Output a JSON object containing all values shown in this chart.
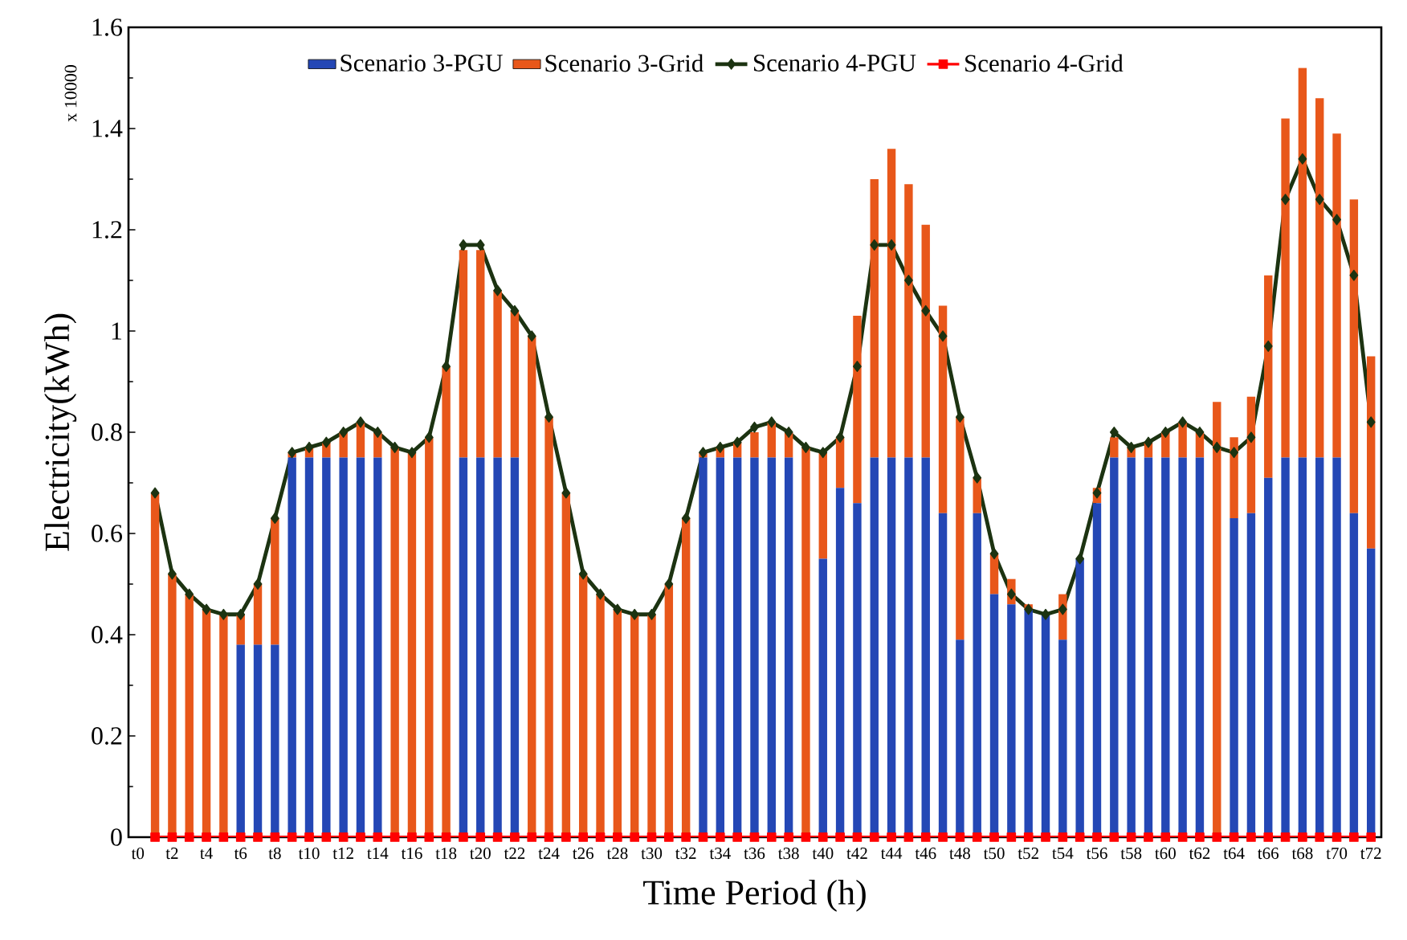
{
  "chart_data": {
    "type": "bar",
    "stacked": true,
    "legend": "top",
    "xlabel": "Time Period (h)",
    "ylabel": "Electricity(kWh)",
    "annotations": [
      "x 10000"
    ],
    "ylim": [
      0,
      1.6
    ],
    "yticks": [
      0,
      0.2,
      0.4,
      0.6,
      0.8,
      1,
      1.2,
      1.4,
      1.6
    ],
    "categories": [
      "t0",
      null,
      "t2",
      null,
      "t4",
      null,
      "t6",
      null,
      "t8",
      null,
      "t10",
      null,
      "t12",
      null,
      "t14",
      null,
      "t16",
      null,
      "t18",
      null,
      "t20",
      null,
      "t22",
      null,
      "t24",
      null,
      "t26",
      null,
      "t28",
      null,
      "t30",
      null,
      "t32",
      null,
      "t34",
      null,
      "t36",
      null,
      "t38",
      null,
      "t40",
      null,
      "t42",
      null,
      "t44",
      null,
      "t46",
      null,
      "t48",
      null,
      "t50",
      null,
      "t52",
      null,
      "t54",
      null,
      "t56",
      null,
      "t58",
      null,
      "t60",
      null,
      "t62",
      null,
      "t64",
      null,
      "t66",
      null,
      "t68",
      null,
      "t70",
      null,
      "t72"
    ],
    "series": [
      {
        "name": "Scenario 3-PGU",
        "type": "bar",
        "color": "#2447b5",
        "values": [
          null,
          0,
          0,
          0,
          0,
          0,
          0.38,
          0.38,
          0.38,
          0.75,
          0.75,
          0.75,
          0.75,
          0.75,
          0.75,
          0,
          0,
          0,
          0,
          0.75,
          0.75,
          0.75,
          0.75,
          0,
          0,
          0,
          0,
          0,
          0,
          0,
          0,
          0,
          0,
          0.75,
          0.75,
          0.75,
          0.75,
          0.75,
          0.75,
          0,
          0.55,
          0.69,
          0.66,
          0.75,
          0.75,
          0.75,
          0.75,
          0.64,
          0.39,
          0.64,
          0.48,
          0.46,
          0.45,
          0.44,
          0.39,
          0.55,
          0.66,
          0.75,
          0.75,
          0.75,
          0.75,
          0.75,
          0.75,
          0,
          0.63,
          0.64,
          0.71,
          0.75,
          0.75,
          0.75,
          0.75,
          0.64,
          0.57
        ]
      },
      {
        "name": "Scenario 3-Grid",
        "type": "bar",
        "color": "#e8571a",
        "values": [
          null,
          0.68,
          0.52,
          0.48,
          0.45,
          0.44,
          0.06,
          0.12,
          0.25,
          0.01,
          0.02,
          0.03,
          0.05,
          0.07,
          0.05,
          0.77,
          0.76,
          0.79,
          0.93,
          0.41,
          0.41,
          0.33,
          0.29,
          0.99,
          0.83,
          0.68,
          0.52,
          0.48,
          0.45,
          0.44,
          0.44,
          0.5,
          0.63,
          0.01,
          0.02,
          0.03,
          0.05,
          0.07,
          0.05,
          0.77,
          0.21,
          0.1,
          0.37,
          0.55,
          0.61,
          0.54,
          0.46,
          0.41,
          0.44,
          0.07,
          0.08,
          0.05,
          0.01,
          0,
          0.09,
          0,
          0.03,
          0.04,
          0.02,
          0.03,
          0.05,
          0.07,
          0.05,
          0.86,
          0.16,
          0.23,
          0.4,
          0.67,
          0.77,
          0.71,
          0.64,
          0.62,
          0.38
        ]
      },
      {
        "name": "Scenario 4-PGU",
        "type": "line",
        "color": "#1c3311",
        "marker": "diamond",
        "values": [
          null,
          0.68,
          0.52,
          0.48,
          0.45,
          0.44,
          0.44,
          0.5,
          0.63,
          0.76,
          0.77,
          0.78,
          0.8,
          0.82,
          0.8,
          0.77,
          0.76,
          0.79,
          0.93,
          1.17,
          1.17,
          1.08,
          1.04,
          0.99,
          0.83,
          0.68,
          0.52,
          0.48,
          0.45,
          0.44,
          0.44,
          0.5,
          0.63,
          0.76,
          0.77,
          0.78,
          0.81,
          0.82,
          0.8,
          0.77,
          0.76,
          0.79,
          0.93,
          1.17,
          1.17,
          1.1,
          1.04,
          0.99,
          0.83,
          0.71,
          0.56,
          0.48,
          0.45,
          0.44,
          0.45,
          0.55,
          0.68,
          0.8,
          0.77,
          0.78,
          0.8,
          0.82,
          0.8,
          0.77,
          0.76,
          0.79,
          0.97,
          1.26,
          1.34,
          1.26,
          1.22,
          1.11,
          0.82
        ]
      },
      {
        "name": "Scenario 4-Grid",
        "type": "line",
        "color": "#ff0000",
        "marker": "square",
        "values": [
          null,
          0,
          0,
          0,
          0,
          0,
          0,
          0,
          0,
          0,
          0,
          0,
          0,
          0,
          0,
          0,
          0,
          0,
          0,
          0,
          0,
          0,
          0,
          0,
          0,
          0,
          0,
          0,
          0,
          0,
          0,
          0,
          0,
          0,
          0,
          0,
          0,
          0,
          0,
          0,
          0,
          0,
          0,
          0,
          0,
          0,
          0,
          0,
          0,
          0,
          0,
          0,
          0,
          0,
          0,
          0,
          0,
          0,
          0,
          0,
          0,
          0,
          0,
          0,
          0,
          0,
          0,
          0,
          0,
          0,
          0,
          0,
          0
        ]
      }
    ]
  }
}
